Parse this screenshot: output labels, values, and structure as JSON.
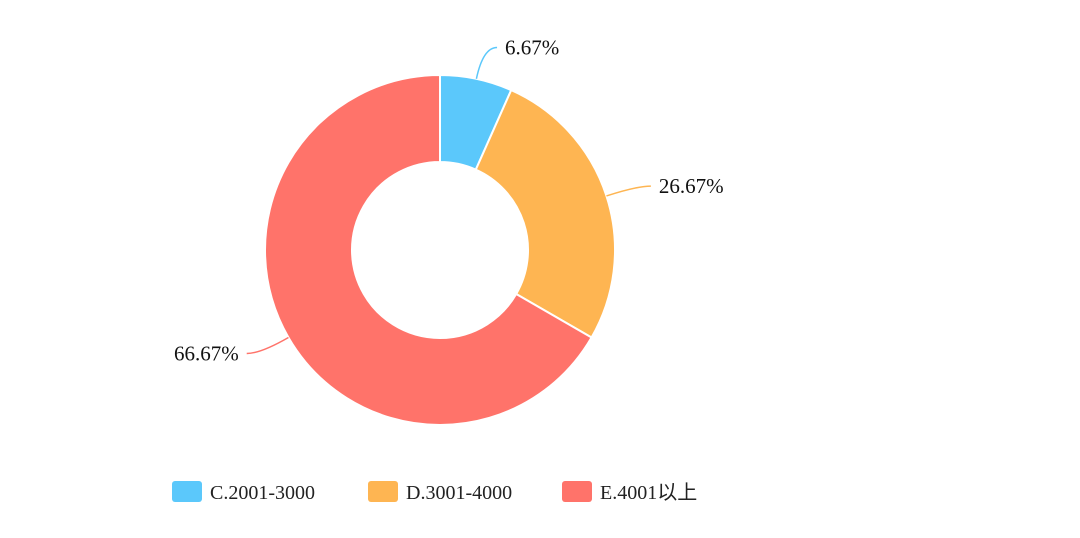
{
  "chart_data": {
    "type": "pie",
    "style": "donut",
    "categories": [
      "C.2001-3000",
      "D.3001-4000",
      "E.4001以上"
    ],
    "values": [
      6.67,
      26.67,
      66.67
    ],
    "labels": [
      "6.67%",
      "26.67%",
      "66.67%"
    ],
    "unit": "%",
    "colors": [
      "#5bc8fb",
      "#feb552",
      "#ff736a"
    ],
    "legend_position": "bottom",
    "start_angle": "12 o'clock",
    "direction": "clockwise"
  }
}
